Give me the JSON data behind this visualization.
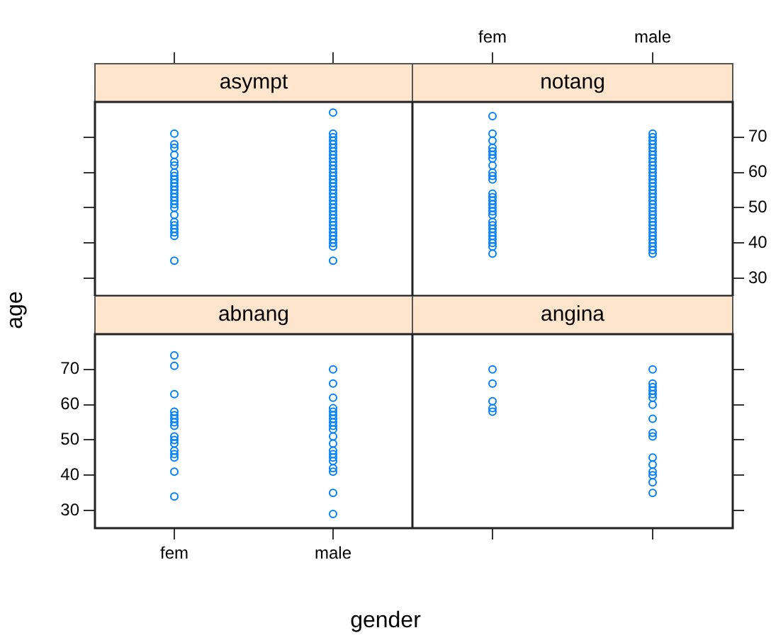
{
  "chart_data": [
    {
      "type": "scatter",
      "title": "asympt",
      "categories": [
        "fem",
        "male"
      ],
      "ylim": [
        25,
        80
      ],
      "yticks": [
        30,
        40,
        50,
        60,
        70
      ],
      "marker": "circle",
      "tick_labels": false,
      "series": [
        {
          "color": "#0080ff",
          "x": [
            "fem",
            "fem",
            "fem",
            "fem",
            "fem",
            "fem",
            "fem",
            "fem",
            "fem",
            "fem",
            "fem",
            "fem",
            "fem",
            "fem",
            "fem",
            "fem",
            "fem",
            "fem",
            "fem",
            "fem",
            "fem",
            "fem",
            "fem",
            "fem"
          ],
          "values": [
            71,
            68,
            67,
            65,
            63,
            62,
            60,
            59,
            58,
            57,
            56,
            55,
            54,
            53,
            52,
            51,
            50,
            48,
            46,
            45,
            44,
            43,
            42,
            35
          ]
        },
        {
          "color": "#0080ff",
          "x": [
            "male",
            "male",
            "male",
            "male",
            "male",
            "male",
            "male",
            "male",
            "male",
            "male",
            "male",
            "male",
            "male",
            "male",
            "male",
            "male",
            "male",
            "male",
            "male",
            "male",
            "male",
            "male",
            "male",
            "male",
            "male",
            "male",
            "male",
            "male",
            "male",
            "male",
            "male",
            "male",
            "male",
            "male",
            "male"
          ],
          "values": [
            77,
            71,
            70,
            69,
            68,
            67,
            66,
            65,
            64,
            63,
            62,
            61,
            60,
            59,
            58,
            57,
            56,
            55,
            54,
            53,
            52,
            51,
            50,
            49,
            48,
            47,
            46,
            45,
            44,
            43,
            42,
            41,
            40,
            39,
            35
          ]
        }
      ]
    },
    {
      "type": "scatter",
      "title": "notang",
      "categories": [
        "fem",
        "male"
      ],
      "ylim": [
        25,
        80
      ],
      "yticks": [
        30,
        40,
        50,
        60,
        70
      ],
      "marker": "circle",
      "series": [
        {
          "color": "#0080ff",
          "x": [
            "fem",
            "fem",
            "fem",
            "fem",
            "fem",
            "fem",
            "fem",
            "fem",
            "fem",
            "fem",
            "fem",
            "fem",
            "fem",
            "fem",
            "fem",
            "fem",
            "fem",
            "fem",
            "fem",
            "fem",
            "fem",
            "fem",
            "fem",
            "fem",
            "fem",
            "fem",
            "fem"
          ],
          "values": [
            76,
            71,
            69,
            67,
            66,
            65,
            64,
            62,
            60,
            59,
            58,
            54,
            53,
            52,
            51,
            50,
            49,
            48,
            46,
            45,
            44,
            43,
            42,
            41,
            40,
            39,
            37
          ]
        },
        {
          "color": "#0080ff",
          "x": [
            "male",
            "male",
            "male",
            "male",
            "male",
            "male",
            "male",
            "male",
            "male",
            "male",
            "male",
            "male",
            "male",
            "male",
            "male",
            "male",
            "male",
            "male",
            "male",
            "male",
            "male",
            "male",
            "male",
            "male",
            "male",
            "male",
            "male",
            "male",
            "male",
            "male",
            "male",
            "male",
            "male",
            "male",
            "male"
          ],
          "values": [
            71,
            70,
            69,
            68,
            67,
            66,
            65,
            64,
            63,
            62,
            61,
            60,
            59,
            58,
            57,
            56,
            55,
            54,
            53,
            52,
            51,
            50,
            49,
            48,
            47,
            46,
            45,
            44,
            43,
            42,
            41,
            40,
            39,
            38,
            37
          ]
        }
      ]
    },
    {
      "type": "scatter",
      "title": "abnang",
      "xlabel": "gender",
      "ylabel": "age",
      "categories": [
        "fem",
        "male"
      ],
      "ylim": [
        25,
        80
      ],
      "yticks": [
        30,
        40,
        50,
        60,
        70
      ],
      "marker": "circle",
      "series": [
        {
          "color": "#0080ff",
          "x": [
            "fem",
            "fem",
            "fem",
            "fem",
            "fem",
            "fem",
            "fem",
            "fem",
            "fem",
            "fem",
            "fem",
            "fem",
            "fem",
            "fem",
            "fem",
            "fem"
          ],
          "values": [
            74,
            71,
            63,
            58,
            57,
            56,
            55,
            54,
            51,
            50,
            49,
            47,
            46,
            45,
            41,
            34
          ]
        },
        {
          "color": "#0080ff",
          "x": [
            "male",
            "male",
            "male",
            "male",
            "male",
            "male",
            "male",
            "male",
            "male",
            "male",
            "male",
            "male",
            "male",
            "male",
            "male",
            "male",
            "male",
            "male",
            "male",
            "male"
          ],
          "values": [
            70,
            66,
            62,
            59,
            58,
            57,
            56,
            55,
            54,
            53,
            51,
            49,
            47,
            46,
            45,
            44,
            42,
            41,
            35,
            29
          ]
        }
      ]
    },
    {
      "type": "scatter",
      "title": "angina",
      "categories": [
        "fem",
        "male"
      ],
      "ylim": [
        25,
        80
      ],
      "yticks": [
        30,
        40,
        50,
        60,
        70
      ],
      "marker": "circle",
      "tick_labels": false,
      "series": [
        {
          "color": "#0080ff",
          "x": [
            "fem",
            "fem",
            "fem",
            "fem",
            "fem"
          ],
          "values": [
            70,
            66,
            61,
            59,
            58
          ]
        },
        {
          "color": "#0080ff",
          "x": [
            "male",
            "male",
            "male",
            "male",
            "male",
            "male",
            "male",
            "male",
            "male",
            "male",
            "male",
            "male",
            "male",
            "male",
            "male",
            "male"
          ],
          "values": [
            70,
            66,
            65,
            64,
            63,
            62,
            60,
            56,
            52,
            51,
            45,
            43,
            41,
            40,
            38,
            35
          ]
        }
      ]
    }
  ]
}
